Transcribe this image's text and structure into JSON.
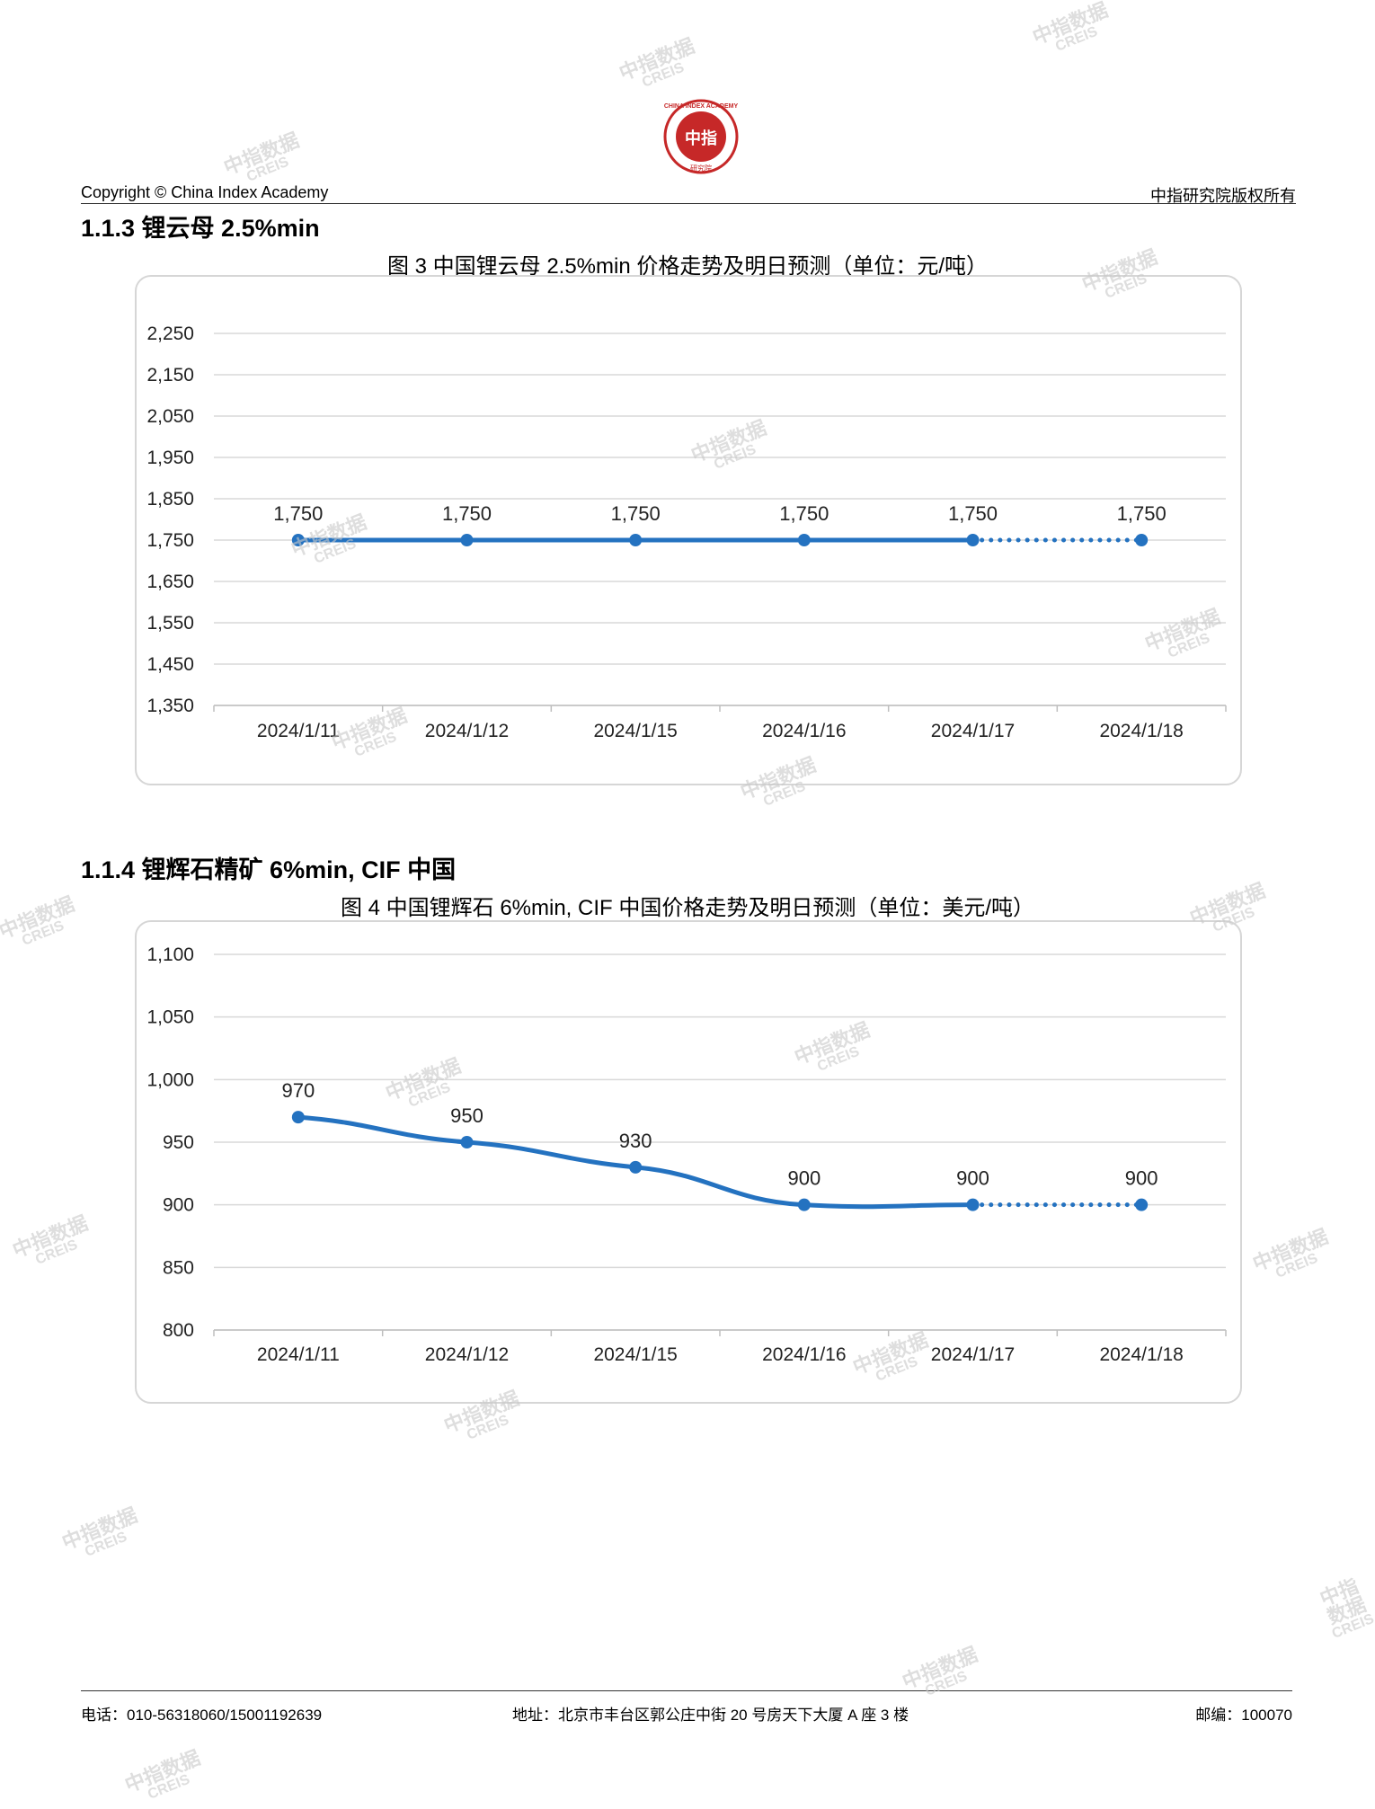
{
  "header": {
    "left": "Copyright © China Index Academy",
    "right": "中指研究院版权所有",
    "logo": {
      "outer_text": "CHINA INDEX ACADEMY",
      "inner_text": "中指",
      "bottom_text": "研究院",
      "color": "#c62828"
    }
  },
  "section1": {
    "title": "1.1.3 锂云母 2.5%min"
  },
  "section2": {
    "title": "1.1.4 锂辉石精矿 6%min, CIF 中国"
  },
  "footer": {
    "phone": "电话：010-56318060/15001192639",
    "address": "地址：北京市丰台区郭公庄中街 20 号房天下大厦 A 座 3 楼",
    "postcode": "邮编：100070"
  },
  "watermark": {
    "line1": "中指数据",
    "line2": "CREIS"
  },
  "chart_data": [
    {
      "type": "line",
      "title": "图 3 中国锂云母 2.5%min 价格走势及明日预测（单位：元/吨）",
      "categories": [
        "2024/1/11",
        "2024/1/12",
        "2024/1/15",
        "2024/1/16",
        "2024/1/17",
        "2024/1/18"
      ],
      "series": [
        {
          "values": [
            1750,
            1750,
            1750,
            1750,
            1750,
            1750
          ],
          "color": "#2472c0",
          "forecast_from_index": 4
        }
      ],
      "data_labels": [
        "1,750",
        "1,750",
        "1,750",
        "1,750",
        "1,750",
        "1,750"
      ],
      "yticks": [
        "1,350",
        "1,450",
        "1,550",
        "1,650",
        "1,750",
        "1,850",
        "1,950",
        "2,050",
        "2,150",
        "2,250"
      ],
      "ylim": [
        1350,
        2250
      ],
      "ytick_step": 100,
      "grid": true,
      "xlabel": "",
      "ylabel": ""
    },
    {
      "type": "line",
      "title": "图 4 中国锂辉石 6%min, CIF 中国价格走势及明日预测（单位：美元/吨）",
      "categories": [
        "2024/1/11",
        "2024/1/12",
        "2024/1/15",
        "2024/1/16",
        "2024/1/17",
        "2024/1/18"
      ],
      "series": [
        {
          "values": [
            970,
            950,
            930,
            900,
            900,
            900
          ],
          "color": "#2472c0",
          "forecast_from_index": 4
        }
      ],
      "data_labels": [
        "970",
        "950",
        "930",
        "900",
        "900",
        "900"
      ],
      "yticks": [
        "800",
        "850",
        "900",
        "950",
        "1,000",
        "1,050",
        "1,100"
      ],
      "ylim": [
        800,
        1100
      ],
      "ytick_step": 50,
      "grid": true,
      "xlabel": "",
      "ylabel": ""
    }
  ]
}
